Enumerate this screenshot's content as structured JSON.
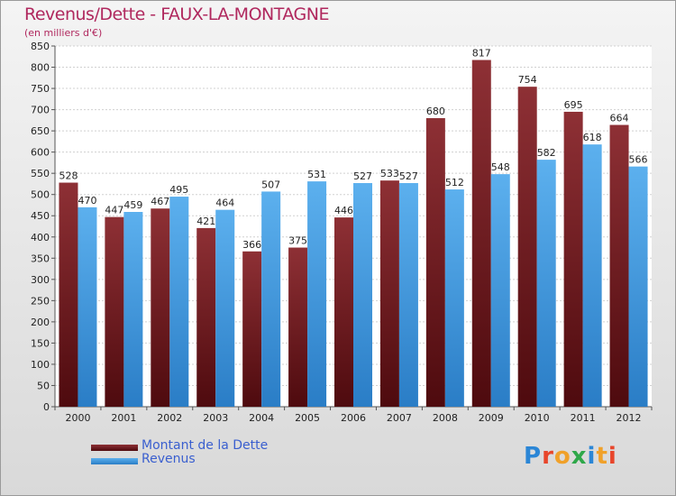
{
  "header": {
    "title": "Revenus/Dette - FAUX-LA-MONTAGNE",
    "subtitle": "(en milliers d'€)"
  },
  "logo": {
    "text": "Proxiti"
  },
  "colors": {
    "debt": "#7a1e24",
    "revenue": "#3d9ae0"
  },
  "chart_data": {
    "type": "bar",
    "title": "Revenus/Dette - FAUX-LA-MONTAGNE",
    "ylabel": "(en milliers d'€)",
    "ylim": [
      0,
      850
    ],
    "ytick_step": 50,
    "grid": true,
    "legend_position": "bottom-left",
    "categories": [
      "2000",
      "2001",
      "2002",
      "2003",
      "2004",
      "2005",
      "2006",
      "2007",
      "2008",
      "2009",
      "2010",
      "2011",
      "2012"
    ],
    "series": [
      {
        "name": "Montant de la Dette",
        "values": [
          528,
          447,
          467,
          421,
          366,
          375,
          446,
          533,
          680,
          817,
          754,
          695,
          664
        ]
      },
      {
        "name": "Revenus",
        "values": [
          470,
          459,
          495,
          464,
          507,
          531,
          527,
          527,
          512,
          548,
          582,
          618,
          566
        ]
      }
    ]
  }
}
